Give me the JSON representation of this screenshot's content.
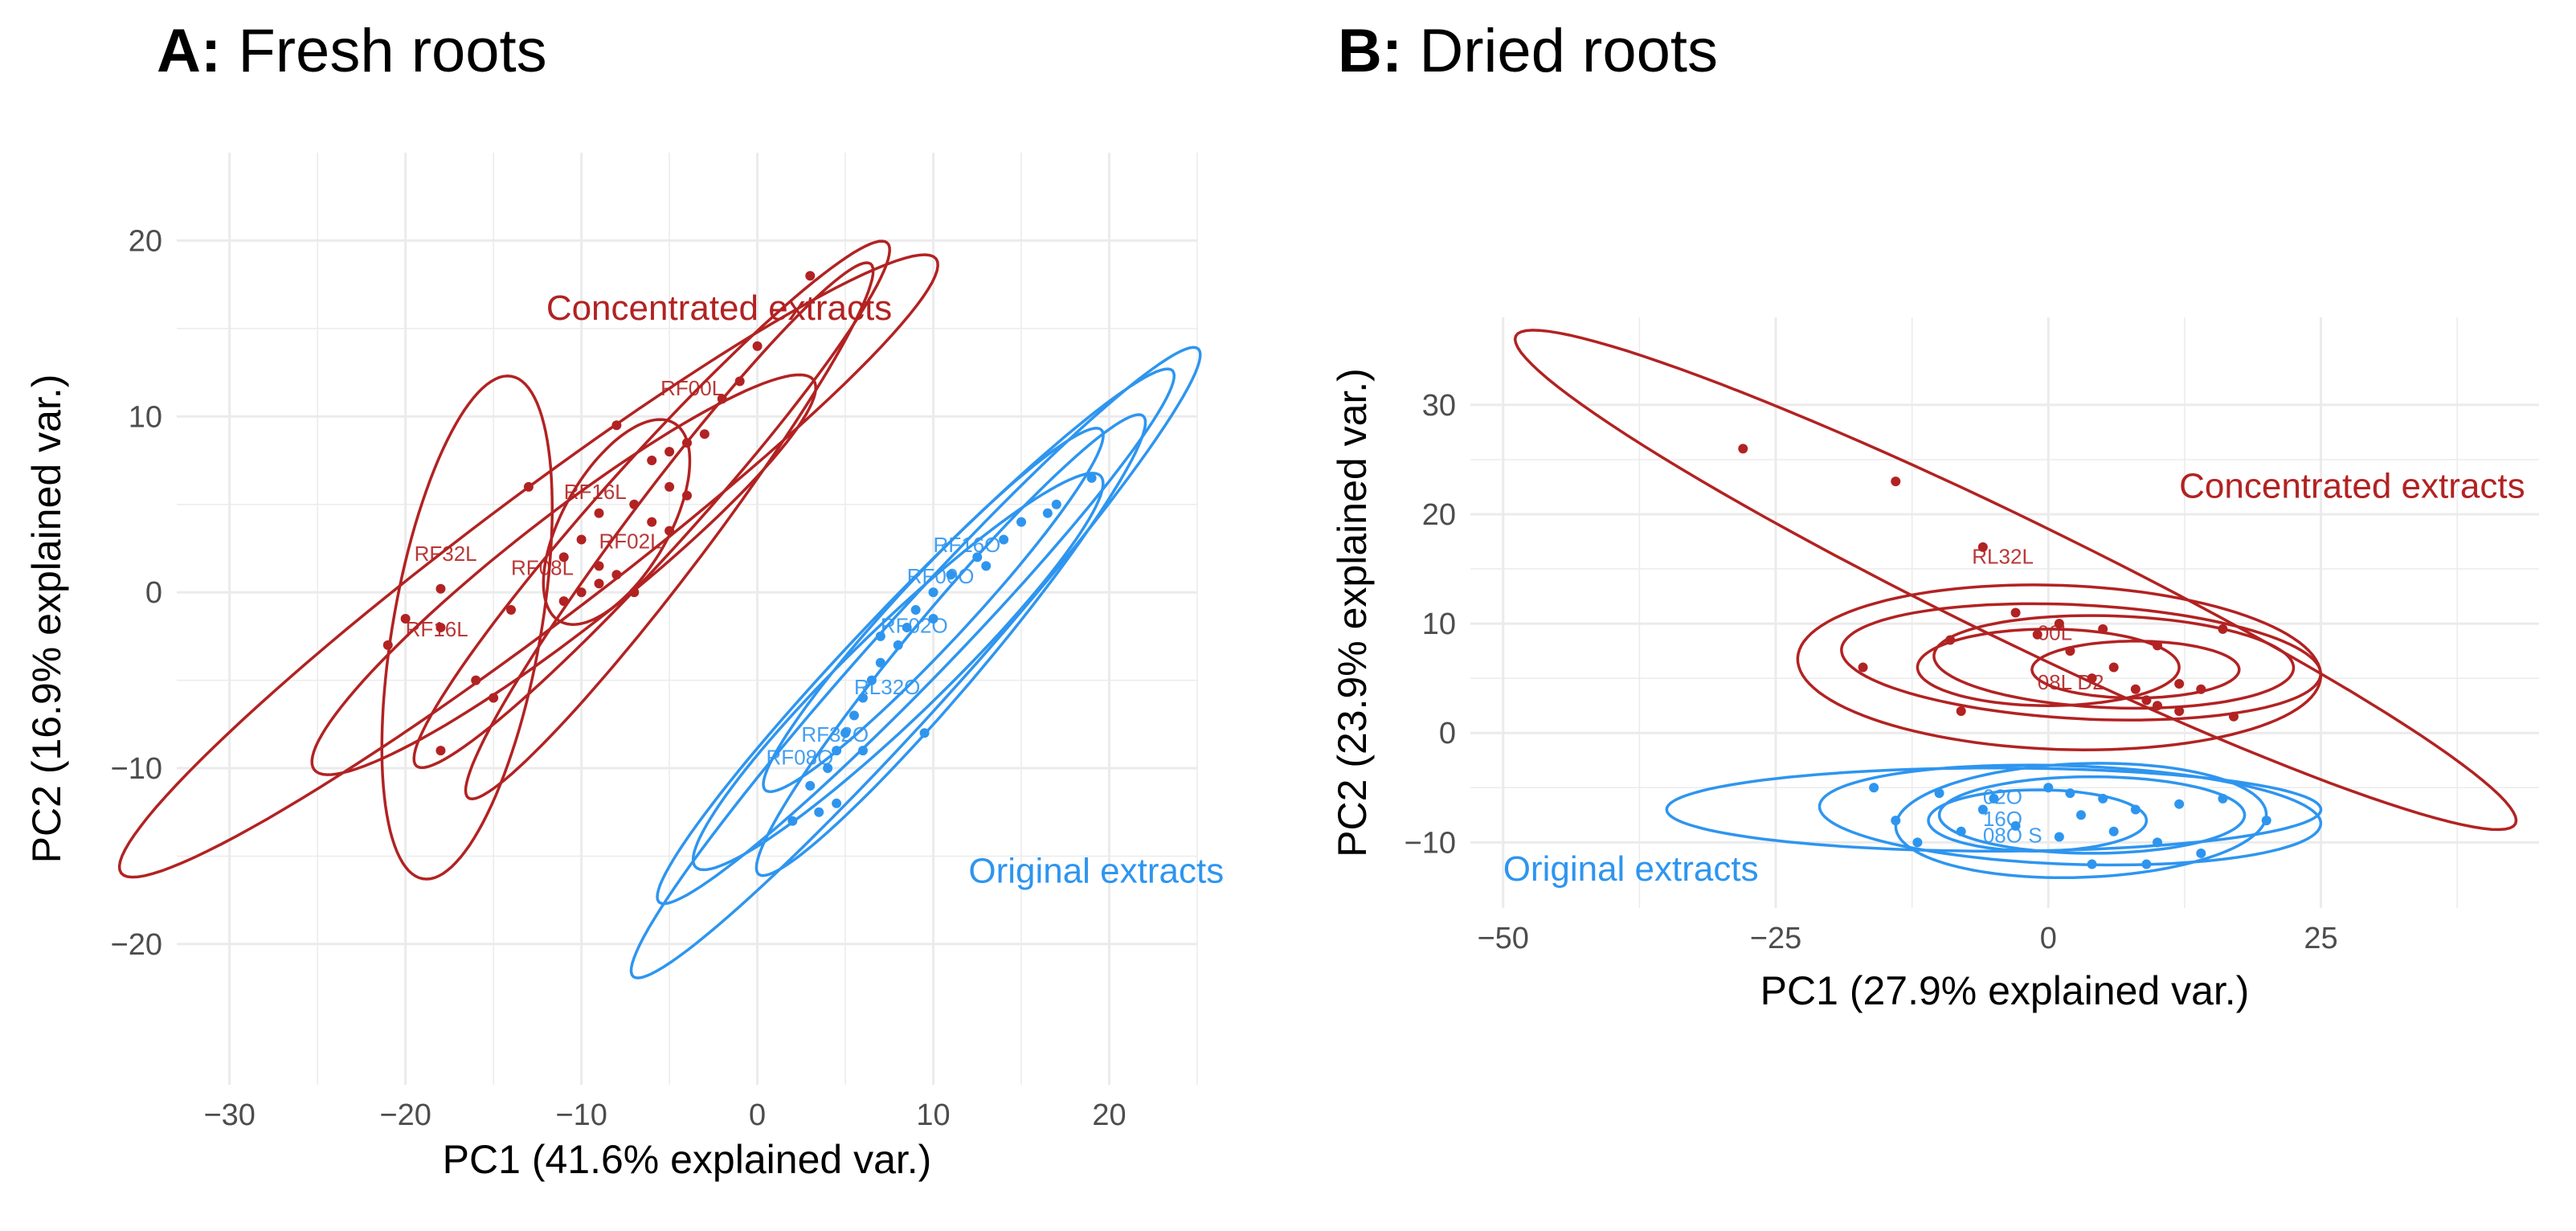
{
  "colors": {
    "concentrated": "#b22222",
    "original": "#2e95ef",
    "grid": "#ebebeb"
  },
  "chart_data": [
    {
      "id": "A",
      "type": "scatter",
      "title_prefix": "A:",
      "title": "Fresh roots",
      "xlabel": "PC1 (41.6% explained var.)",
      "ylabel": "PC2 (16.9% explained var.)",
      "xlim": [
        -33,
        25
      ],
      "ylim": [
        -28,
        25
      ],
      "xticks": [
        -30,
        -20,
        -10,
        0,
        10,
        20
      ],
      "yticks": [
        -20,
        -10,
        0,
        10,
        20
      ],
      "grid": true,
      "groups": [
        {
          "name": "Concentrated extracts",
          "color_key": "concentrated",
          "label_at": [
            -12,
            15.5
          ]
        },
        {
          "name": "Original extracts",
          "color_key": "original",
          "label_at": [
            12,
            -16.5
          ]
        }
      ],
      "series": [
        {
          "group": "Concentrated extracts",
          "points": [
            [
              3,
              18
            ],
            [
              0,
              14
            ],
            [
              -1,
              12
            ],
            [
              -2,
              11
            ],
            [
              -3,
              9
            ],
            [
              -4,
              8.5
            ],
            [
              -5,
              8
            ],
            [
              -8,
              9.5
            ],
            [
              -6,
              7.5
            ],
            [
              -5,
              6
            ],
            [
              -4,
              5.5
            ],
            [
              -7,
              5
            ],
            [
              -9,
              4.5
            ],
            [
              -6,
              4
            ],
            [
              -13,
              6
            ],
            [
              -10,
              3
            ],
            [
              -11,
              2
            ],
            [
              -5,
              3.5
            ],
            [
              -8,
              1
            ],
            [
              -9,
              0.5
            ],
            [
              -10,
              0
            ],
            [
              -7,
              0
            ],
            [
              -14,
              -1
            ],
            [
              -11,
              -0.5
            ],
            [
              -18,
              0.2
            ],
            [
              -20,
              -1.5
            ],
            [
              -21,
              -3
            ],
            [
              -18,
              -2
            ],
            [
              -16,
              -5
            ],
            [
              -15,
              -6
            ],
            [
              -18,
              -9
            ],
            [
              -9,
              1.5
            ]
          ]
        },
        {
          "group": "Original extracts",
          "points": [
            [
              19,
              6.5
            ],
            [
              17,
              5
            ],
            [
              16.5,
              4.5
            ],
            [
              15,
              4
            ],
            [
              14,
              3
            ],
            [
              12.5,
              2
            ],
            [
              11,
              1
            ],
            [
              10,
              0
            ],
            [
              9,
              -1
            ],
            [
              8.5,
              -2
            ],
            [
              8,
              -3
            ],
            [
              7,
              -4
            ],
            [
              6.5,
              -5
            ],
            [
              6,
              -6
            ],
            [
              5.5,
              -7
            ],
            [
              5,
              -8
            ],
            [
              4.5,
              -9
            ],
            [
              4,
              -10
            ],
            [
              3,
              -11
            ],
            [
              2,
              -13
            ],
            [
              9.5,
              -8
            ],
            [
              6,
              -9
            ],
            [
              4.5,
              -12
            ],
            [
              3.5,
              -12.5
            ],
            [
              7,
              -2.5
            ],
            [
              10,
              -1.5
            ],
            [
              13,
              1.5
            ]
          ]
        }
      ],
      "ellipses": [
        {
          "group": "Concentrated extracts",
          "cx": -13,
          "cy": 1.5,
          "rx": 29,
          "ry": 3.6,
          "angle": 37
        },
        {
          "group": "Concentrated extracts",
          "cx": -6,
          "cy": 5,
          "rx": 20,
          "ry": 2.6,
          "angle": 48
        },
        {
          "group": "Concentrated extracts",
          "cx": -5,
          "cy": 3.5,
          "rx": 19,
          "ry": 2.3,
          "angle": 53
        },
        {
          "group": "Concentrated extracts",
          "cx": -11,
          "cy": 1,
          "rx": 18,
          "ry": 3.2,
          "angle": 38
        },
        {
          "group": "Concentrated extracts",
          "cx": -16.5,
          "cy": -2,
          "rx": 14.5,
          "ry": 4.2,
          "angle": 80
        },
        {
          "group": "Concentrated extracts",
          "cx": -8,
          "cy": 4,
          "rx": 6.5,
          "ry": 3,
          "angle": 60
        },
        {
          "group": "Original extracts",
          "cx": 9,
          "cy": -4,
          "rx": 24,
          "ry": 2.6,
          "angle": 48
        },
        {
          "group": "Original extracts",
          "cx": 9,
          "cy": -2.5,
          "rx": 21,
          "ry": 2.4,
          "angle": 46
        },
        {
          "group": "Original extracts",
          "cx": 11,
          "cy": -3,
          "rx": 17,
          "ry": 2.2,
          "angle": 50
        },
        {
          "group": "Original extracts",
          "cx": 8,
          "cy": -4.5,
          "rx": 16,
          "ry": 2.6,
          "angle": 44
        },
        {
          "group": "Original extracts",
          "cx": 10,
          "cy": -1,
          "rx": 14,
          "ry": 2,
          "angle": 47
        }
      ],
      "point_labels": [
        {
          "text": "RF00L",
          "group": "Concentrated extracts",
          "at": [
            -5.5,
            11.2
          ]
        },
        {
          "text": "RF16L",
          "group": "Concentrated extracts",
          "at": [
            -11,
            5.3
          ]
        },
        {
          "text": "RF32L",
          "group": "Concentrated extracts",
          "at": [
            -19.5,
            1.8
          ]
        },
        {
          "text": "RF08L",
          "group": "Concentrated extracts",
          "at": [
            -14,
            1
          ]
        },
        {
          "text": "RF02L",
          "group": "Concentrated extracts",
          "at": [
            -9,
            2.5
          ]
        },
        {
          "text": "RF16L",
          "group": "Concentrated extracts",
          "at": [
            -20,
            -2.5
          ]
        },
        {
          "text": "RF16O",
          "group": "Original extracts",
          "at": [
            10,
            2.3
          ]
        },
        {
          "text": "RF00O",
          "group": "Original extracts",
          "at": [
            8.5,
            0.5
          ]
        },
        {
          "text": "RF02O",
          "group": "Original extracts",
          "at": [
            7,
            -2.3
          ]
        },
        {
          "text": "RL32O",
          "group": "Original extracts",
          "at": [
            5.5,
            -5.8
          ]
        },
        {
          "text": "RF32O",
          "group": "Original extracts",
          "at": [
            2.5,
            -8.5
          ]
        },
        {
          "text": "RF08O",
          "group": "Original extracts",
          "at": [
            0.5,
            -9.8
          ]
        }
      ]
    },
    {
      "id": "B",
      "type": "scatter",
      "title_prefix": "B:",
      "title": "Dried roots",
      "xlabel": "PC1 (27.9% explained var.)",
      "ylabel": "PC2 (23.9% explained var.)",
      "xlim": [
        -53,
        45
      ],
      "ylim": [
        -16,
        38
      ],
      "xticks": [
        -50,
        -25,
        0,
        25
      ],
      "yticks": [
        -10,
        0,
        10,
        20,
        30
      ],
      "grid": true,
      "groups": [
        {
          "name": "Concentrated extracts",
          "color_key": "concentrated",
          "label_at": [
            12,
            21.5
          ]
        },
        {
          "name": "Original extracts",
          "color_key": "original",
          "label_at": [
            -50,
            -13.5
          ]
        }
      ],
      "series": [
        {
          "group": "Concentrated extracts",
          "points": [
            [
              -28,
              26
            ],
            [
              -14,
              23
            ],
            [
              -6,
              17
            ],
            [
              -3,
              11
            ],
            [
              -9,
              8.5
            ],
            [
              -1,
              9
            ],
            [
              1,
              10
            ],
            [
              5,
              9.5
            ],
            [
              10,
              8
            ],
            [
              16,
              9.5
            ],
            [
              -17,
              6
            ],
            [
              4,
              5
            ],
            [
              8,
              4
            ],
            [
              12,
              4.5
            ],
            [
              14,
              4
            ],
            [
              -8,
              2
            ],
            [
              10,
              2.5
            ],
            [
              17,
              1.5
            ],
            [
              6,
              6
            ],
            [
              2,
              7.5
            ],
            [
              9,
              3
            ],
            [
              12,
              2
            ]
          ]
        },
        {
          "group": "Original extracts",
          "points": [
            [
              -16,
              -5
            ],
            [
              -10,
              -5.5
            ],
            [
              -5,
              -6
            ],
            [
              0,
              -5
            ],
            [
              2,
              -5.5
            ],
            [
              5,
              -6
            ],
            [
              8,
              -7
            ],
            [
              12,
              -6.5
            ],
            [
              16,
              -6
            ],
            [
              -14,
              -8
            ],
            [
              -8,
              -9
            ],
            [
              -3,
              -8.5
            ],
            [
              1,
              -9.5
            ],
            [
              6,
              -9
            ],
            [
              10,
              -10
            ],
            [
              14,
              -11
            ],
            [
              20,
              -8
            ],
            [
              -12,
              -10
            ],
            [
              4,
              -12
            ],
            [
              9,
              -12
            ],
            [
              -6,
              -7
            ],
            [
              3,
              -7.5
            ]
          ]
        }
      ],
      "ellipses": [
        {
          "group": "Concentrated extracts",
          "cx": -3,
          "cy": 14,
          "rx": 51,
          "ry": 5.5,
          "angle": -26
        },
        {
          "group": "Concentrated extracts",
          "cx": 1,
          "cy": 6,
          "rx": 24,
          "ry": 7.5,
          "angle": -2
        },
        {
          "group": "Concentrated extracts",
          "cx": 3,
          "cy": 6.5,
          "rx": 22,
          "ry": 5.2,
          "angle": -3
        },
        {
          "group": "Concentrated extracts",
          "cx": 6,
          "cy": 6.5,
          "rx": 16.5,
          "ry": 4.2,
          "angle": -2
        },
        {
          "group": "Concentrated extracts",
          "cx": 8,
          "cy": 5.8,
          "rx": 9.5,
          "ry": 2.6,
          "angle": 0
        },
        {
          "group": "Concentrated extracts",
          "cx": 0,
          "cy": 6,
          "rx": 12,
          "ry": 3.5,
          "angle": 0
        },
        {
          "group": "Original extracts",
          "cx": -5,
          "cy": -7,
          "rx": 30,
          "ry": 3.8,
          "angle": 0
        },
        {
          "group": "Original extracts",
          "cx": 2,
          "cy": -7.5,
          "rx": 23,
          "ry": 4.5,
          "angle": -2
        },
        {
          "group": "Original extracts",
          "cx": 3,
          "cy": -8,
          "rx": 17,
          "ry": 5.2,
          "angle": 2
        },
        {
          "group": "Original extracts",
          "cx": 4,
          "cy": -7.5,
          "rx": 14,
          "ry": 3.5,
          "angle": 0
        },
        {
          "group": "Original extracts",
          "cx": -1,
          "cy": -8,
          "rx": 10,
          "ry": 2.8,
          "angle": 0
        }
      ],
      "point_labels": [
        {
          "text": "RL32L",
          "group": "Concentrated extracts",
          "at": [
            -7,
            15.5
          ]
        },
        {
          "text": "00L",
          "group": "Concentrated extracts",
          "at": [
            -1,
            8.5
          ]
        },
        {
          "text": "08L D2",
          "group": "Concentrated extracts",
          "at": [
            -1,
            4
          ]
        },
        {
          "text": "02O",
          "group": "Original extracts",
          "at": [
            -6,
            -6.5
          ]
        },
        {
          "text": "16O",
          "group": "Original extracts",
          "at": [
            -6,
            -8.5
          ]
        },
        {
          "text": "08O S",
          "group": "Original extracts",
          "at": [
            -6,
            -10
          ]
        }
      ]
    }
  ]
}
